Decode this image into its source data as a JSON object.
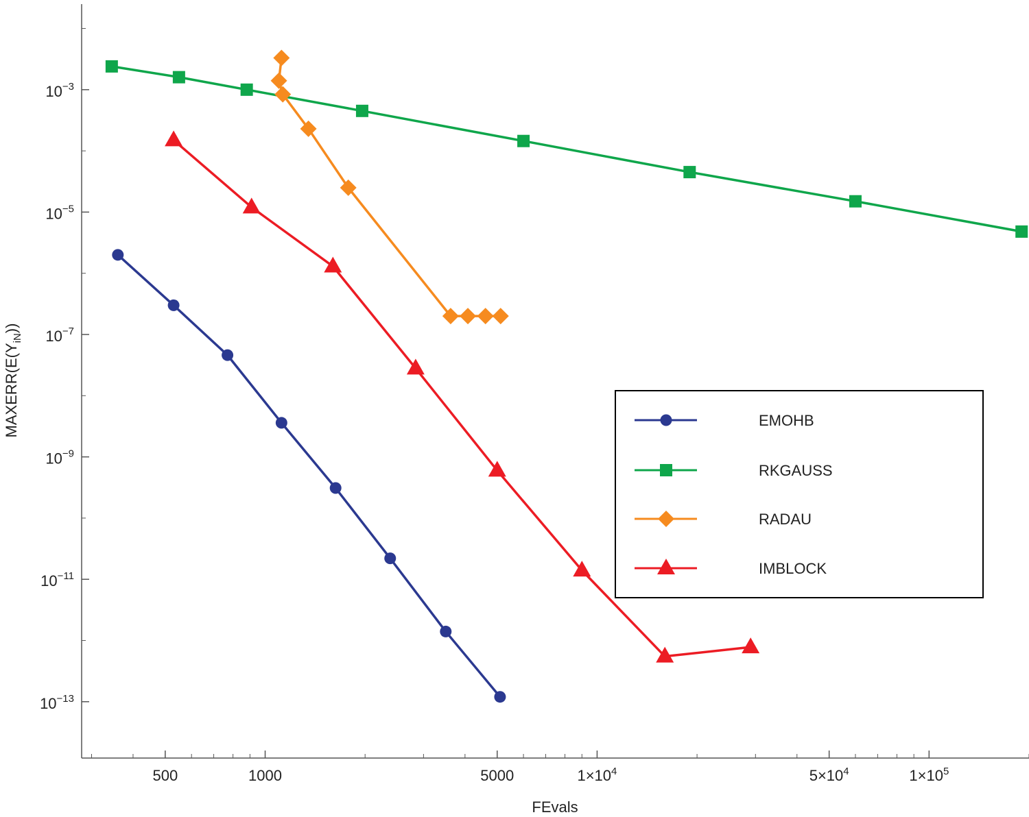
{
  "chart_data": {
    "type": "line",
    "xscale": "log",
    "yscale": "log",
    "xlabel": "FEvals",
    "ylabel": "MAXERR(E(Y",
    "ylabel_sub": "iN",
    "ylabel_end": "))",
    "xlim": [
      280,
      200000
    ],
    "ylim": [
      1.2e-14,
      0.025
    ],
    "x_ticks": [
      {
        "value": 500,
        "label": "500"
      },
      {
        "value": 1000,
        "label": "1000"
      },
      {
        "value": 5000,
        "label": "5000"
      },
      {
        "value": 10000,
        "label": "1×10",
        "exp": "4"
      },
      {
        "value": 50000,
        "label": "5×10",
        "exp": "4"
      },
      {
        "value": 100000,
        "label": "1×10",
        "exp": "5"
      }
    ],
    "y_ticks": [
      {
        "value": 0.001,
        "label": "10",
        "exp": "−3"
      },
      {
        "value": 1e-05,
        "label": "10",
        "exp": "−5"
      },
      {
        "value": 1e-07,
        "label": "10",
        "exp": "−7"
      },
      {
        "value": 1e-09,
        "label": "10",
        "exp": "−9"
      },
      {
        "value": 1e-11,
        "label": "10",
        "exp": "−11"
      },
      {
        "value": 1e-13,
        "label": "10",
        "exp": "−13"
      }
    ],
    "legend_position": "right-center",
    "series": [
      {
        "name": "EMOHB",
        "color": "#2b3990",
        "marker": "circle",
        "x": [
          360,
          530,
          770,
          1120,
          1630,
          2380,
          3500,
          5100
        ],
        "y": [
          2e-06,
          3e-07,
          4.6e-08,
          3.6e-09,
          3.1e-10,
          2.2e-11,
          1.4e-12,
          1.2e-13
        ]
      },
      {
        "name": "RKGAUSS",
        "color": "#0fa64b",
        "marker": "square",
        "x": [
          345,
          550,
          880,
          1960,
          6000,
          19000,
          60000,
          190000
        ],
        "y": [
          0.0024,
          0.0016,
          0.001,
          0.00045,
          0.000145,
          4.5e-05,
          1.5e-05,
          4.8e-06
        ]
      },
      {
        "name": "RADAU",
        "color": "#f68b1f",
        "marker": "diamond",
        "x": [
          1120,
          1100,
          1130,
          1350,
          1780,
          3620,
          4080,
          4610,
          5120
        ],
        "y": [
          0.0033,
          0.0014,
          0.00084,
          0.00023,
          2.5e-05,
          2e-07,
          2e-07,
          2e-07,
          2e-07
        ]
      },
      {
        "name": "IMBLOCK",
        "color": "#ec1c24",
        "marker": "triangle",
        "x": [
          530,
          910,
          1600,
          2840,
          5000,
          9000,
          16000,
          29000
        ],
        "y": [
          0.00015,
          1.2e-05,
          1.3e-06,
          2.8e-08,
          6e-10,
          1.4e-11,
          5.5e-13,
          7.8e-13
        ]
      }
    ]
  }
}
